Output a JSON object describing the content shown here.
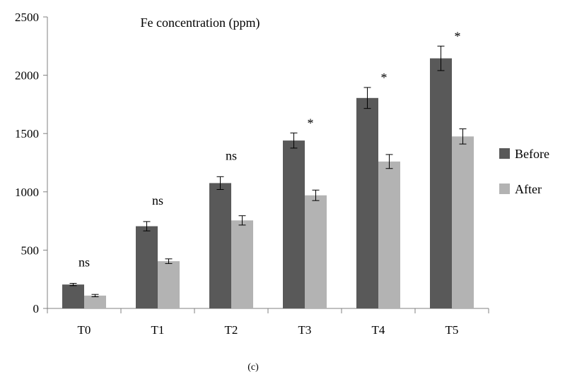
{
  "chart_data": {
    "type": "bar",
    "title": "Fe concentration (ppm)",
    "caption": "(c)",
    "xlabel": "",
    "ylabel": "",
    "ylim": [
      0,
      2500
    ],
    "yticks": [
      0,
      500,
      1000,
      1500,
      2000,
      2500
    ],
    "categories": [
      "T0",
      "T1",
      "T2",
      "T3",
      "T4",
      "T5"
    ],
    "series": [
      {
        "name": "Before",
        "color": "#595959",
        "values": [
          205,
          705,
          1075,
          1440,
          1805,
          2145
        ],
        "errors": [
          10,
          40,
          55,
          65,
          90,
          105
        ]
      },
      {
        "name": "After",
        "color": "#b3b3b3",
        "values": [
          110,
          405,
          755,
          970,
          1260,
          1475
        ],
        "errors": [
          10,
          20,
          40,
          45,
          60,
          65
        ]
      }
    ],
    "significance": [
      "ns",
      "ns",
      "ns",
      "*",
      "*",
      "*"
    ],
    "legend_position": "right",
    "grid": false
  }
}
